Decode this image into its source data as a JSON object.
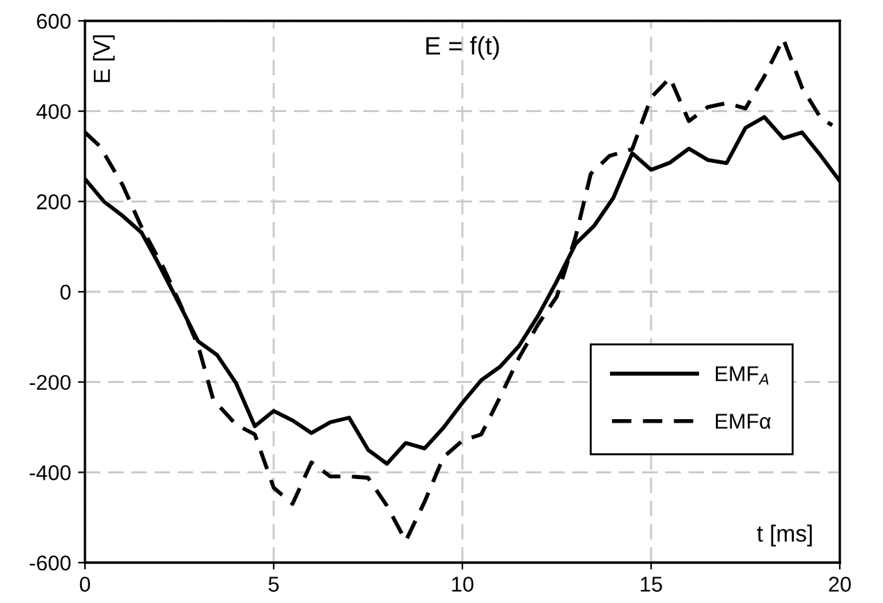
{
  "chart_data": {
    "type": "line",
    "title": "E = f(t)",
    "xlabel": "t [ms]",
    "ylabel": "E [V]",
    "xlim": [
      0,
      20
    ],
    "xticks": [
      0,
      5,
      10,
      15,
      20
    ],
    "ylim": [
      -600,
      600
    ],
    "yticks": [
      -600,
      -400,
      -200,
      0,
      200,
      400,
      600
    ],
    "grid": true,
    "legend": "bottom right",
    "marker": "none",
    "series": [
      {
        "name": "EMF$_{A}$",
        "color": "#000000",
        "line_style": "solid",
        "x": [
          0,
          0.5,
          1,
          1.5,
          1.9,
          2.4,
          3,
          3.5,
          4,
          4.5,
          5,
          5.5,
          6,
          6.5,
          7,
          7.5,
          8,
          8.5,
          9,
          9.5,
          10,
          10.5,
          11,
          11.5,
          12,
          12.5,
          13,
          13.5,
          14,
          14.5,
          15,
          15.5,
          16,
          16.5,
          17,
          17.5,
          18,
          18.5,
          19,
          19.5,
          20
        ],
        "values": [
          250,
          200,
          168,
          131,
          70,
          -11,
          -110,
          -140,
          -202,
          -298,
          -264,
          -285,
          -313,
          -289,
          -279,
          -350,
          -381,
          -335,
          -347,
          -301,
          -246,
          -196,
          -166,
          -120,
          -54,
          23,
          106,
          147,
          208,
          307,
          270,
          286,
          317,
          292,
          285,
          363,
          387,
          340,
          353,
          301,
          245
        ]
      },
      {
        "name": "EMFα",
        "color": "#000000",
        "line_style": "dashed",
        "x": [
          0,
          0.4,
          1,
          1.5,
          2.1,
          2.5,
          3,
          3.4,
          4,
          4.5,
          5,
          5.5,
          6,
          6.5,
          7,
          7.5,
          8,
          8.5,
          9,
          9.5,
          10,
          10.5,
          11,
          11.5,
          12,
          12.5,
          13,
          13.4,
          13.9,
          14.5,
          15,
          15.5,
          16,
          16.5,
          17,
          17.5,
          18,
          18.5,
          19,
          19.5,
          19.8
        ],
        "values": [
          353,
          322,
          236,
          143,
          50,
          -23,
          -120,
          -239,
          -294,
          -316,
          -434,
          -470,
          -378,
          -409,
          -409,
          -412,
          -474,
          -552,
          -465,
          -366,
          -330,
          -316,
          -233,
          -146,
          -73,
          -11,
          122,
          261,
          301,
          316,
          430,
          474,
          378,
          409,
          418,
          406,
          477,
          560,
          452,
          384,
          369
        ]
      }
    ]
  }
}
